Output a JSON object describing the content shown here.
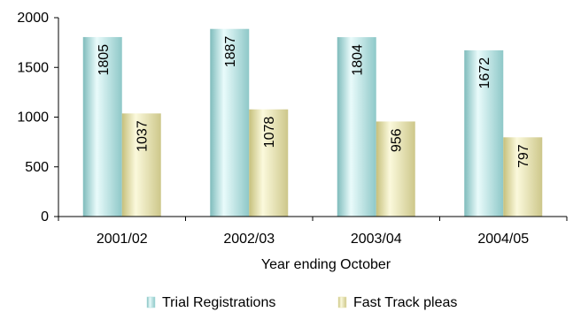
{
  "chart_data": {
    "type": "bar",
    "categories": [
      "2001/02",
      "2002/03",
      "2003/04",
      "2004/05"
    ],
    "series": [
      {
        "name": "Trial Registrations",
        "values": [
          1805,
          1887,
          1804,
          1672
        ],
        "color": "#a8dede"
      },
      {
        "name": "Fast Track pleas",
        "values": [
          1037,
          1078,
          956,
          797
        ],
        "color": "#e8e4ae"
      }
    ],
    "data_labels": {
      "series_0": [
        "1805",
        "1887",
        "1804",
        "1672"
      ],
      "series_1": [
        "1037",
        "1078",
        "956",
        "797"
      ]
    },
    "xlabel": "Year ending October",
    "ylim": [
      0,
      2000
    ],
    "yticks": [
      0,
      500,
      1000,
      1500,
      2000
    ],
    "grid": false,
    "legend_position": "bottom",
    "bar_style": "3d-cylinder-gradient"
  }
}
